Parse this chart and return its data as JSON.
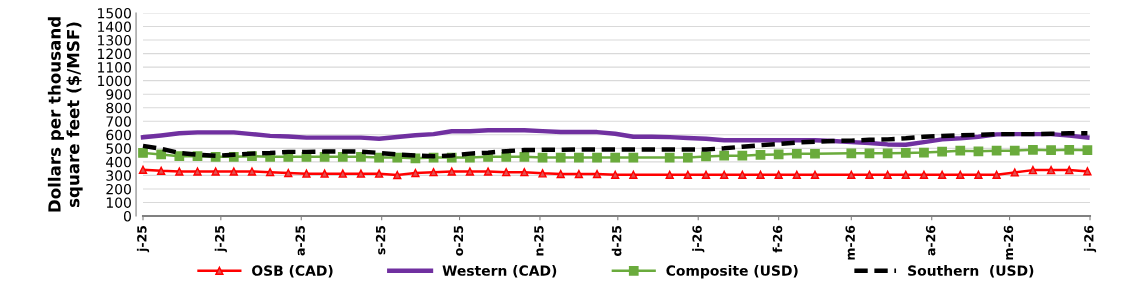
{
  "chart_data": {
    "type": "line",
    "ylabel": "Dollars per thousand\nsquare feet ($/MSF)",
    "x": [
      "2025-06-01",
      "2025-06-08",
      "2025-06-15",
      "2025-06-22",
      "2025-06-29",
      "2025-07-06",
      "2025-07-13",
      "2025-07-20",
      "2025-07-27",
      "2025-08-03",
      "2025-08-10",
      "2025-08-17",
      "2025-08-24",
      "2025-08-31",
      "2025-09-07",
      "2025-09-14",
      "2025-09-21",
      "2025-09-28",
      "2025-10-05",
      "2025-10-12",
      "2025-10-19",
      "2025-10-26",
      "2025-11-02",
      "2025-11-09",
      "2025-11-16",
      "2025-11-23",
      "2025-11-30",
      "2025-12-07",
      "2025-12-14",
      "2025-12-21",
      "2025-12-28",
      "2026-01-04",
      "2026-01-11",
      "2026-01-18",
      "2026-01-25",
      "2026-02-01",
      "2026-02-08",
      "2026-02-15",
      "2026-02-22",
      "2026-03-01",
      "2026-03-08",
      "2026-03-15",
      "2026-03-22",
      "2026-03-29",
      "2026-04-05",
      "2026-04-12",
      "2026-04-19",
      "2026-04-26",
      "2026-05-03",
      "2026-05-10",
      "2026-05-17",
      "2026-05-24",
      "2026-05-31"
    ],
    "series": [
      {
        "name": "OSB (CAD)",
        "color": "#ff0000",
        "marker": "triangle",
        "line_style": "solid",
        "x": [
          "2025-06-01",
          "2025-06-08",
          "2025-06-15",
          "2025-06-22",
          "2025-06-29",
          "2025-07-06",
          "2025-07-13",
          "2025-07-20",
          "2025-07-27",
          "2025-08-03",
          "2025-08-10",
          "2025-08-17",
          "2025-08-24",
          "2025-08-31",
          "2025-09-07",
          "2025-09-14",
          "2025-09-21",
          "2025-09-28",
          "2025-10-05",
          "2025-10-12",
          "2025-10-19",
          "2025-10-26",
          "2025-11-02",
          "2025-11-09",
          "2025-11-16",
          "2025-11-23",
          "2025-11-30",
          "2025-12-07",
          "2025-12-21",
          "2025-12-28",
          "2026-01-04",
          "2026-01-11",
          "2026-01-18",
          "2026-01-25",
          "2026-02-01",
          "2026-02-08",
          "2026-02-15",
          "2026-03-01",
          "2026-03-08",
          "2026-03-15",
          "2026-03-22",
          "2026-03-29",
          "2026-04-05",
          "2026-04-12",
          "2026-04-19",
          "2026-04-26",
          "2026-05-03",
          "2026-05-10",
          "2026-05-17",
          "2026-05-24",
          "2026-05-31"
        ],
        "values": [
          342,
          334,
          329,
          329,
          329,
          329,
          329,
          324,
          318,
          313,
          313,
          313,
          313,
          313,
          303,
          318,
          324,
          329,
          329,
          329,
          324,
          324,
          315,
          310,
          310,
          310,
          305,
          305,
          305,
          305,
          305,
          305,
          305,
          305,
          305,
          305,
          305,
          305,
          305,
          305,
          305,
          305,
          305,
          305,
          305,
          305,
          322,
          339,
          339,
          339,
          330
        ]
      },
      {
        "name": "Western (CAD)",
        "color": "#7030a0",
        "marker": "none",
        "line_style": "solid",
        "values": [
          582,
          595,
          611,
          618,
          618,
          618,
          605,
          592,
          587,
          579,
          579,
          579,
          579,
          571,
          584,
          597,
          605,
          626,
          626,
          634,
          634,
          634,
          627,
          620,
          620,
          620,
          608,
          586,
          586,
          583,
          577,
          571,
          560,
          560,
          560,
          560,
          560,
          560,
          554,
          546,
          540,
          529,
          526,
          546,
          566,
          574,
          586,
          603,
          605,
          605,
          605,
          594,
          580
        ]
      },
      {
        "name": "Composite (USD)",
        "color": "#6aab3c",
        "marker": "square",
        "line_style": "solid",
        "x": [
          "2025-06-01",
          "2025-06-08",
          "2025-06-15",
          "2025-06-22",
          "2025-06-29",
          "2025-07-06",
          "2025-07-13",
          "2025-07-20",
          "2025-07-27",
          "2025-08-03",
          "2025-08-10",
          "2025-08-17",
          "2025-08-24",
          "2025-08-31",
          "2025-09-07",
          "2025-09-14",
          "2025-09-21",
          "2025-09-28",
          "2025-10-05",
          "2025-10-12",
          "2025-10-19",
          "2025-10-26",
          "2025-11-02",
          "2025-11-09",
          "2025-11-16",
          "2025-11-23",
          "2025-11-30",
          "2025-12-07",
          "2025-12-21",
          "2025-12-28",
          "2026-01-04",
          "2026-01-11",
          "2026-01-18",
          "2026-01-25",
          "2026-02-01",
          "2026-02-08",
          "2026-02-15",
          "2026-03-01",
          "2026-03-08",
          "2026-03-15",
          "2026-03-22",
          "2026-03-29",
          "2026-04-05",
          "2026-04-12",
          "2026-04-19",
          "2026-04-26",
          "2026-05-03",
          "2026-05-10",
          "2026-05-17",
          "2026-05-24",
          "2026-05-31"
        ],
        "values": [
          466,
          455,
          442,
          442,
          437,
          437,
          442,
          437,
          437,
          437,
          437,
          437,
          437,
          432,
          432,
          426,
          432,
          432,
          432,
          437,
          437,
          437,
          432,
          432,
          432,
          432,
          432,
          432,
          432,
          432,
          440,
          446,
          446,
          452,
          455,
          460,
          460,
          463,
          463,
          463,
          466,
          469,
          475,
          483,
          478,
          483,
          483,
          489,
          486,
          489,
          486
        ]
      },
      {
        "name": "Southern  (USD)",
        "color": "#000000",
        "marker": "none",
        "line_style": "dashed",
        "values": [
          518,
          497,
          466,
          453,
          445,
          453,
          461,
          466,
          474,
          474,
          476,
          476,
          476,
          466,
          455,
          447,
          442,
          447,
          461,
          468,
          479,
          487,
          489,
          489,
          492,
          492,
          492,
          492,
          492,
          492,
          492,
          492,
          500,
          512,
          523,
          532,
          543,
          549,
          554,
          557,
          563,
          566,
          574,
          586,
          591,
          597,
          600,
          605,
          605,
          605,
          608,
          611,
          611
        ]
      }
    ],
    "xlim": [
      "2025-06-01",
      "2026-06-01"
    ],
    "xticks": [
      {
        "value": "2025-06-01",
        "label": "j-25"
      },
      {
        "value": "2025-07-01",
        "label": "j-25"
      },
      {
        "value": "2025-08-01",
        "label": "a-25"
      },
      {
        "value": "2025-09-01",
        "label": "s-25"
      },
      {
        "value": "2025-10-01",
        "label": "o-25"
      },
      {
        "value": "2025-11-01",
        "label": "n-25"
      },
      {
        "value": "2025-12-01",
        "label": "d-25"
      },
      {
        "value": "2026-01-01",
        "label": "j-26"
      },
      {
        "value": "2026-02-01",
        "label": "f-26"
      },
      {
        "value": "2026-03-01",
        "label": "m-26"
      },
      {
        "value": "2026-04-01",
        "label": "a-26"
      },
      {
        "value": "2026-05-01",
        "label": "m-26"
      },
      {
        "value": "2026-06-01",
        "label": "j-26"
      }
    ],
    "ylim": [
      0,
      1500
    ],
    "yticks": [
      0,
      100,
      200,
      300,
      400,
      500,
      600,
      700,
      800,
      900,
      1000,
      1100,
      1200,
      1300,
      1400,
      1500
    ],
    "grid": "y",
    "legend": "bottom"
  }
}
